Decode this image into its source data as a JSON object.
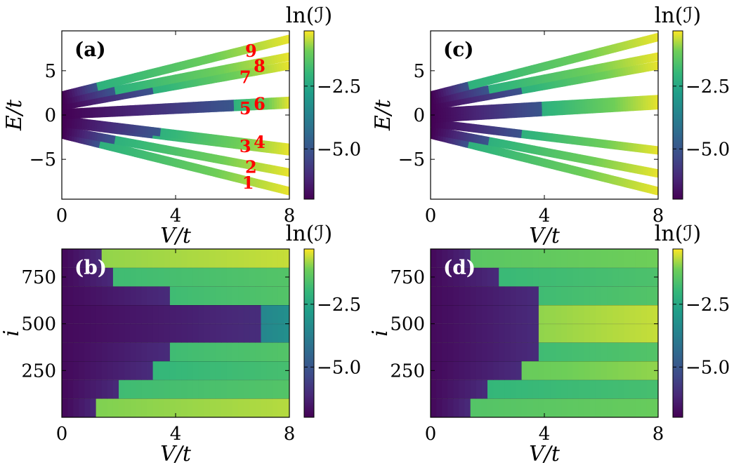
{
  "chart_data": [
    {
      "panel": "(a)",
      "type": "scatter",
      "xlabel": "V/t",
      "ylabel": "E/t",
      "xlim": [
        0,
        8
      ],
      "ylim": [
        -9.5,
        9.5
      ],
      "xticks": [
        "0",
        "4",
        "8"
      ],
      "yticks": [
        "−5",
        "0",
        "5"
      ],
      "colorbar": {
        "label": "ln(ℐ)",
        "ticks": [
          "−2.5",
          "−5.0"
        ],
        "range": [
          -7,
          -0.3
        ],
        "colormap": "viridis"
      },
      "bands": [
        {
          "id": "1",
          "E_at_0": -2.2,
          "E_at_8": -8.6,
          "onset_V": 1.3
        },
        {
          "id": "2",
          "E_at_0": -1.7,
          "E_at_8": -6.5,
          "onset_V": 1.8
        },
        {
          "id": "3",
          "E_at_0": -0.9,
          "E_at_8": -4.1,
          "onset_V": 3.2
        },
        {
          "id": "4",
          "E_at_0": -0.6,
          "E_at_8": -3.7,
          "onset_V": 3.4
        },
        {
          "id": "5",
          "E_at_0": 0.0,
          "E_at_8": 1.2,
          "onset_V": 6.0
        },
        {
          "id": "6",
          "E_at_0": 0.2,
          "E_at_8": 1.6,
          "onset_V": 6.0
        },
        {
          "id": "7",
          "E_at_0": 1.0,
          "E_at_8": 5.6,
          "onset_V": 3.2
        },
        {
          "id": "8",
          "E_at_0": 1.6,
          "E_at_8": 6.6,
          "onset_V": 1.8
        },
        {
          "id": "9",
          "E_at_0": 2.2,
          "E_at_8": 8.6,
          "onset_V": 1.2
        }
      ],
      "level_labels": [
        "9",
        "8",
        "7",
        "5",
        "6",
        "3",
        "4",
        "2",
        "1"
      ]
    },
    {
      "panel": "(b)",
      "type": "heatmap",
      "xlabel": "V/t",
      "ylabel": "i",
      "xlim": [
        0,
        8
      ],
      "ylim": [
        0,
        900
      ],
      "xticks": [
        "0",
        "4",
        "8"
      ],
      "yticks": [
        "250",
        "500",
        "750"
      ],
      "colorbar": {
        "label": "ln(ℐ)",
        "ticks": [
          "−2.5",
          "−5.0"
        ],
        "range": [
          -7,
          -0.3
        ],
        "colormap": "viridis"
      },
      "blocks": [
        {
          "i_range": [
            0,
            100
          ],
          "onset_V": 1.3,
          "value_after": -1.0
        },
        {
          "i_range": [
            100,
            200
          ],
          "onset_V": 2.1,
          "value_after": -1.8
        },
        {
          "i_range": [
            200,
            300
          ],
          "onset_V": 3.2,
          "value_after": -2.0
        },
        {
          "i_range": [
            300,
            400
          ],
          "onset_V": 3.9,
          "value_after": -1.8
        },
        {
          "i_range": [
            400,
            500
          ],
          "onset_V": 7.0,
          "value_after": -3.5
        },
        {
          "i_range": [
            500,
            600
          ],
          "onset_V": 7.0,
          "value_after": -3.5
        },
        {
          "i_range": [
            600,
            700
          ],
          "onset_V": 3.9,
          "value_after": -1.8
        },
        {
          "i_range": [
            700,
            800
          ],
          "onset_V": 1.9,
          "value_after": -1.8
        },
        {
          "i_range": [
            800,
            900
          ],
          "onset_V": 1.4,
          "value_after": -0.9
        }
      ]
    },
    {
      "panel": "(c)",
      "type": "scatter",
      "xlabel": "V/t",
      "ylabel": "E/t",
      "xlim": [
        0,
        8
      ],
      "ylim": [
        -9.5,
        9.5
      ],
      "xticks": [
        "0",
        "4",
        "8"
      ],
      "yticks": [
        "−5",
        "0",
        "5"
      ],
      "colorbar": {
        "label": "ln(ℐ)",
        "ticks": [
          "−2.5",
          "−5.0"
        ],
        "range": [
          -7,
          -0.3
        ],
        "colormap": "viridis"
      },
      "bands": [
        {
          "id": "1",
          "E_at_0": -2.2,
          "E_at_8": -8.6,
          "onset_V": 1.3
        },
        {
          "id": "2",
          "E_at_0": -1.7,
          "E_at_8": -6.6,
          "onset_V": 2.0
        },
        {
          "id": "3",
          "E_at_0": -0.9,
          "E_at_8": -4.0,
          "onset_V": 3.2
        },
        {
          "id": "4",
          "E_at_0": -0.4,
          "E_at_8": 1.1,
          "onset_V": 3.9
        },
        {
          "id": "5",
          "E_at_0": 0.0,
          "E_at_8": 1.4,
          "onset_V": 3.9
        },
        {
          "id": "6",
          "E_at_0": 0.3,
          "E_at_8": 1.8,
          "onset_V": 3.9
        },
        {
          "id": "7",
          "E_at_0": 1.0,
          "E_at_8": 5.6,
          "onset_V": 3.2
        },
        {
          "id": "8",
          "E_at_0": 1.6,
          "E_at_8": 6.6,
          "onset_V": 2.0
        },
        {
          "id": "9",
          "E_at_0": 2.2,
          "E_at_8": 8.8,
          "onset_V": 1.3
        }
      ]
    },
    {
      "panel": "(d)",
      "type": "heatmap",
      "xlabel": "V/t",
      "ylabel": "i",
      "xlim": [
        0,
        8
      ],
      "ylim": [
        0,
        900
      ],
      "xticks": [
        "0",
        "4",
        "8"
      ],
      "yticks": [
        "250",
        "500",
        "750"
      ],
      "colorbar": {
        "label": "ln(ℐ)",
        "ticks": [
          "−2.5",
          "−5.0"
        ],
        "range": [
          -7,
          -0.3
        ],
        "colormap": "viridis"
      },
      "blocks": [
        {
          "i_range": [
            0,
            100
          ],
          "onset_V": 1.4,
          "value_after": -1.5
        },
        {
          "i_range": [
            100,
            200
          ],
          "onset_V": 2.0,
          "value_after": -2.0
        },
        {
          "i_range": [
            200,
            300
          ],
          "onset_V": 3.2,
          "value_after": -1.2
        },
        {
          "i_range": [
            300,
            400
          ],
          "onset_V": 3.9,
          "value_after": -1.8
        },
        {
          "i_range": [
            400,
            500
          ],
          "onset_V": 3.9,
          "value_after": -0.9
        },
        {
          "i_range": [
            500,
            600
          ],
          "onset_V": 3.9,
          "value_after": -0.9
        },
        {
          "i_range": [
            600,
            700
          ],
          "onset_V": 3.9,
          "value_after": -1.8
        },
        {
          "i_range": [
            700,
            800
          ],
          "onset_V": 2.5,
          "value_after": -1.9
        },
        {
          "i_range": [
            800,
            900
          ],
          "onset_V": 1.5,
          "value_after": -1.4
        }
      ]
    }
  ]
}
